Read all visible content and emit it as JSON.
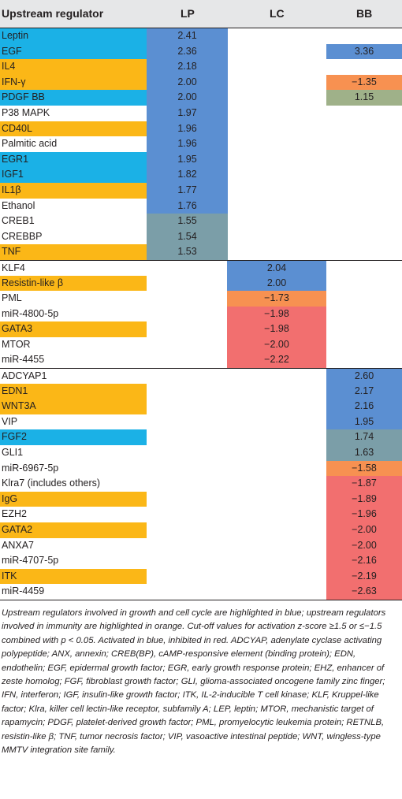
{
  "header": {
    "regulator": "Upstream regulator",
    "lp": "LP",
    "lc": "LC",
    "bb": "BB"
  },
  "colors": {
    "growth_highlight": "#1bb1e6",
    "immunity_highlight": "#fbb717",
    "activated_blue": "#5b8fd2",
    "weak_activated": "#7b9ea8",
    "bb_weak_green": "#9fb189",
    "inhibited_orange": "#f79151",
    "inhibited_red": "#f26f6f"
  },
  "rows": [
    {
      "name": "Leptin",
      "hl": "blue",
      "lp": "2.41",
      "lp_c": "blue"
    },
    {
      "name": "EGF",
      "hl": "blue",
      "lp": "2.36",
      "lp_c": "blue",
      "bb": "3.36",
      "bb_c": "blue"
    },
    {
      "name": "IL4",
      "hl": "orange",
      "lp": "2.18",
      "lp_c": "blue"
    },
    {
      "name": "IFN-γ",
      "hl": "orange",
      "lp": "2.00",
      "lp_c": "blue",
      "bb": "−1.35",
      "bb_c": "orange"
    },
    {
      "name": "PDGF BB",
      "hl": "blue",
      "lp": "2.00",
      "lp_c": "blue",
      "bb": "1.15",
      "bb_c": "green"
    },
    {
      "name": "P38 MAPK",
      "lp": "1.97",
      "lp_c": "blue"
    },
    {
      "name": "CD40L",
      "hl": "orange",
      "lp": "1.96",
      "lp_c": "blue"
    },
    {
      "name": "Palmitic acid",
      "lp": "1.96",
      "lp_c": "blue"
    },
    {
      "name": "EGR1",
      "hl": "blue",
      "lp": "1.95",
      "lp_c": "blue"
    },
    {
      "name": "IGF1",
      "hl": "blue",
      "lp": "1.82",
      "lp_c": "blue"
    },
    {
      "name": "IL1β",
      "hl": "orange",
      "lp": "1.77",
      "lp_c": "blue"
    },
    {
      "name": "Ethanol",
      "lp": "1.76",
      "lp_c": "blue"
    },
    {
      "name": "CREB1",
      "lp": "1.55",
      "lp_c": "grey"
    },
    {
      "name": "CREBBP",
      "lp": "1.54",
      "lp_c": "grey"
    },
    {
      "name": "TNF",
      "hl": "orange",
      "lp": "1.53",
      "lp_c": "grey"
    },
    {
      "name": "KLF4",
      "lc": "2.04",
      "lc_c": "blue",
      "sep": true
    },
    {
      "name": "Resistin-like β",
      "hl": "orange",
      "lc": "2.00",
      "lc_c": "blue"
    },
    {
      "name": "PML",
      "lc": "−1.73",
      "lc_c": "orange"
    },
    {
      "name": "miR-4800-5p",
      "lc": "−1.98",
      "lc_c": "red"
    },
    {
      "name": "GATA3",
      "hl": "orange",
      "lc": "−1.98",
      "lc_c": "red"
    },
    {
      "name": "MTOR",
      "lc": "−2.00",
      "lc_c": "red"
    },
    {
      "name": "miR-4455",
      "lc": "−2.22",
      "lc_c": "red"
    },
    {
      "name": "ADCYAP1",
      "bb": "2.60",
      "bb_c": "blue",
      "sep": true
    },
    {
      "name": "EDN1",
      "hl": "orange",
      "bb": "2.17",
      "bb_c": "blue"
    },
    {
      "name": "WNT3A",
      "hl": "orange",
      "bb": "2.16",
      "bb_c": "blue"
    },
    {
      "name": "VIP",
      "bb": "1.95",
      "bb_c": "blue"
    },
    {
      "name": "FGF2",
      "hl": "blue",
      "bb": "1.74",
      "bb_c": "grey"
    },
    {
      "name": "GLI1",
      "bb": "1.63",
      "bb_c": "grey"
    },
    {
      "name": "miR-6967-5p",
      "bb": "−1.58",
      "bb_c": "orange"
    },
    {
      "name": "Klra7 (includes others)",
      "bb": "−1.87",
      "bb_c": "red"
    },
    {
      "name": "IgG",
      "hl": "orange",
      "bb": "−1.89",
      "bb_c": "red"
    },
    {
      "name": "EZH2",
      "bb": "−1.96",
      "bb_c": "red"
    },
    {
      "name": "GATA2",
      "hl": "orange",
      "bb": "−2.00",
      "bb_c": "red"
    },
    {
      "name": "ANXA7",
      "bb": "−2.00",
      "bb_c": "red"
    },
    {
      "name": "miR-4707-5p",
      "bb": "−2.16",
      "bb_c": "red"
    },
    {
      "name": "ITK",
      "hl": "orange",
      "bb": "−2.19",
      "bb_c": "red"
    },
    {
      "name": "miR-4459",
      "bb": "−2.63",
      "bb_c": "red"
    }
  ],
  "caption": "Upstream regulators involved in growth and cell cycle are highlighted in blue; upstream regulators involved in immunity are highlighted in orange. Cut-off values for activation z-score ≥1.5 or ≤−1.5 combined with p < 0.05. Activated in blue, inhibited in red. ADCYAP, adenylate cyclase activating polypeptide; ANX, annexin; CREB(BP), cAMP-responsive element (binding protein); EDN, endothelin; EGF, epidermal growth factor; EGR, early growth response protein; EHZ, enhancer of zeste homolog; FGF, fibroblast growth factor; GLI, glioma-associated oncogene family zinc finger; IFN, interferon; IGF, insulin-like growth factor; ITK, IL-2-inducible T cell kinase; KLF, Kruppel-like factor; Klra, killer cell lectin-like receptor, subfamily A; LEP, leptin; MTOR, mechanistic target of rapamycin; PDGF, platelet-derived growth factor; PML, promyelocytic leukemia protein; RETNLB, resistin-like β; TNF, tumor necrosis factor; VIP, vasoactive intestinal peptide; WNT, wingless-type MMTV integration site family."
}
